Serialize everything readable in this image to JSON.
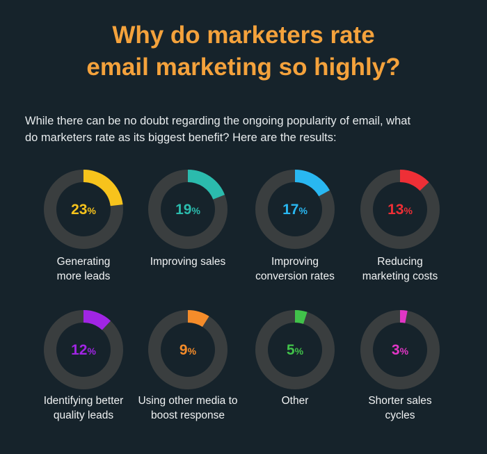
{
  "header": {
    "title_line1": "Why do marketers rate",
    "title_line2": "email marketing so highly?"
  },
  "intro": {
    "line1": "While there can be no doubt regarding the ongoing popularity of email, what",
    "line2": "do marketers rate as its biggest benefit? Here are the results:"
  },
  "chart_data": {
    "type": "pie",
    "title": "Why do marketers rate email marketing so highly?",
    "unit": "%",
    "track_color": "#3a3e3f",
    "items": [
      {
        "label": "Generating more leads",
        "label_lines": [
          "Generating",
          "more leads"
        ],
        "value": 23,
        "value_label": "23",
        "color": "#f7c31c"
      },
      {
        "label": "Improving sales",
        "label_lines": [
          "Improving sales"
        ],
        "value": 19,
        "value_label": "19",
        "color": "#2bbbad"
      },
      {
        "label": "Improving conversion rates",
        "label_lines": [
          "Improving",
          "conversion rates"
        ],
        "value": 17,
        "value_label": "17",
        "color": "#29b7f1"
      },
      {
        "label": "Reducing marketing costs",
        "label_lines": [
          "Reducing",
          "marketing costs"
        ],
        "value": 13,
        "value_label": "13",
        "color": "#ee2f36"
      },
      {
        "label": "Identifying better quality leads",
        "label_lines": [
          "Identifying better",
          "quality leads"
        ],
        "value": 12,
        "value_label": "12",
        "color": "#a125e5"
      },
      {
        "label": "Using other media to boost response",
        "label_lines": [
          "Using other media to",
          "boost response"
        ],
        "value": 9,
        "value_label": "9",
        "color": "#f58c2a"
      },
      {
        "label": "Other",
        "label_lines": [
          "Other"
        ],
        "value": 5,
        "value_label": "5",
        "color": "#41c24a"
      },
      {
        "label": "Shorter sales cycles",
        "label_lines": [
          "Shorter sales",
          "cycles"
        ],
        "value": 3,
        "value_label": "3",
        "color": "#e236c6"
      }
    ]
  }
}
